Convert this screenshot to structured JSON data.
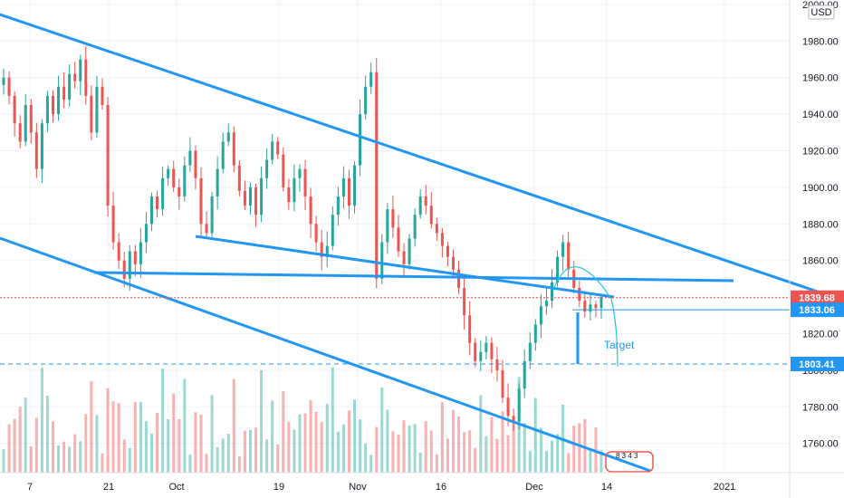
{
  "chart_data": {
    "type": "candlestick",
    "currency": "USD",
    "y_range": [
      1745,
      2000
    ],
    "y_ticks": [
      {
        "value": 2000,
        "label": "2000.00"
      },
      {
        "value": 1980,
        "label": "1980.00"
      },
      {
        "value": 1960,
        "label": "1960.00"
      },
      {
        "value": 1940,
        "label": "1940.00"
      },
      {
        "value": 1920,
        "label": "1920.00"
      },
      {
        "value": 1900,
        "label": "1900.00"
      },
      {
        "value": 1880,
        "label": "1880.00"
      },
      {
        "value": 1860,
        "label": "1860.00"
      },
      {
        "value": 1840,
        "label": "1840.00"
      },
      {
        "value": 1820,
        "label": "1820.00"
      },
      {
        "value": 1800,
        "label": "1800.00"
      },
      {
        "value": 1780,
        "label": "1780.00"
      },
      {
        "value": 1760,
        "label": "1760.00"
      }
    ],
    "x_ticks": [
      "7",
      "21",
      "Oct",
      "19",
      "Nov",
      "16",
      "Dec",
      "14",
      "2021"
    ],
    "price_tags": [
      {
        "label": "1839.68",
        "value": 1839.68,
        "color": "#ef5350",
        "line": "dotted"
      },
      {
        "label": "1833.06",
        "value": 1833.06,
        "color": "#2196f3",
        "line": "solid"
      },
      {
        "label": "1803.41",
        "value": 1803.41,
        "color": "#2196f3",
        "line": "dashed"
      }
    ],
    "annotations": [
      {
        "text": "Target"
      },
      {
        "text": "8 3 4 3"
      }
    ],
    "closes": [
      1960,
      1950,
      1935,
      1925,
      1945,
      1930,
      1910,
      1935,
      1950,
      1940,
      1955,
      1948,
      1962,
      1958,
      1970,
      1950,
      1930,
      1955,
      1945,
      1890,
      1870,
      1860,
      1850,
      1865,
      1858,
      1870,
      1880,
      1895,
      1888,
      1905,
      1910,
      1900,
      1895,
      1912,
      1920,
      1905,
      1880,
      1875,
      1895,
      1910,
      1925,
      1930,
      1912,
      1898,
      1890,
      1900,
      1885,
      1905,
      1915,
      1925,
      1918,
      1900,
      1892,
      1905,
      1910,
      1895,
      1880,
      1870,
      1862,
      1868,
      1885,
      1895,
      1905,
      1890,
      1912,
      1940,
      1955,
      1963,
      1850,
      1870,
      1888,
      1878,
      1865,
      1858,
      1872,
      1885,
      1895,
      1890,
      1880,
      1875,
      1868,
      1862,
      1855,
      1845,
      1830,
      1815,
      1805,
      1810,
      1815,
      1806,
      1800,
      1785,
      1775,
      1772,
      1790,
      1805,
      1815,
      1825,
      1835,
      1838,
      1848,
      1862,
      1870,
      1855,
      1845,
      1838,
      1832,
      1836,
      1834,
      1840
    ]
  }
}
